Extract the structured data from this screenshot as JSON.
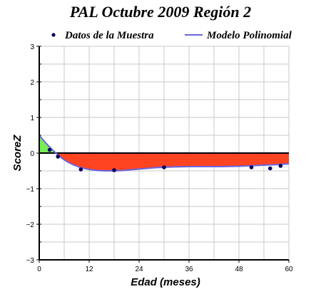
{
  "chart_data": {
    "type": "line",
    "title": "PAL Octubre 2009 Región 2",
    "xlabel": "Edad (meses)",
    "ylabel": "ScoreZ",
    "xlim": [
      0,
      60
    ],
    "ylim": [
      -3,
      3
    ],
    "x_ticks": [
      "0",
      "12",
      "24",
      "36",
      "48",
      "60"
    ],
    "y_ticks": [
      "3",
      "2",
      "1",
      "0",
      "−1",
      "−2",
      "−3"
    ],
    "grid": true,
    "legend_position": "top",
    "series": [
      {
        "name": "Datos de la Muestra",
        "kind": "scatter",
        "color": "#000066",
        "x": [
          2.5,
          4.5,
          10,
          18,
          30,
          51,
          55.5,
          58
        ],
        "y": [
          0.09,
          -0.1,
          -0.46,
          -0.48,
          -0.4,
          -0.4,
          -0.43,
          -0.36
        ]
      },
      {
        "name": "Modelo Polinomial",
        "kind": "line",
        "color": "#6666dd",
        "x": [
          0,
          1,
          2,
          3,
          4,
          5,
          6,
          7,
          8,
          10,
          12,
          14,
          16,
          18,
          20,
          24,
          28,
          32,
          36,
          40,
          44,
          48,
          50,
          52,
          54,
          56,
          58,
          60
        ],
        "y": [
          0.5,
          0.36,
          0.23,
          0.11,
          0.0,
          -0.1,
          -0.19,
          -0.26,
          -0.32,
          -0.41,
          -0.46,
          -0.49,
          -0.5,
          -0.5,
          -0.49,
          -0.45,
          -0.41,
          -0.39,
          -0.38,
          -0.38,
          -0.38,
          -0.37,
          -0.36,
          -0.35,
          -0.34,
          -0.33,
          -0.32,
          -0.3
        ]
      }
    ],
    "fill_positive_color": "#77ee55",
    "fill_negative_color": "#ff4422",
    "zero_line_color": "#000000"
  }
}
